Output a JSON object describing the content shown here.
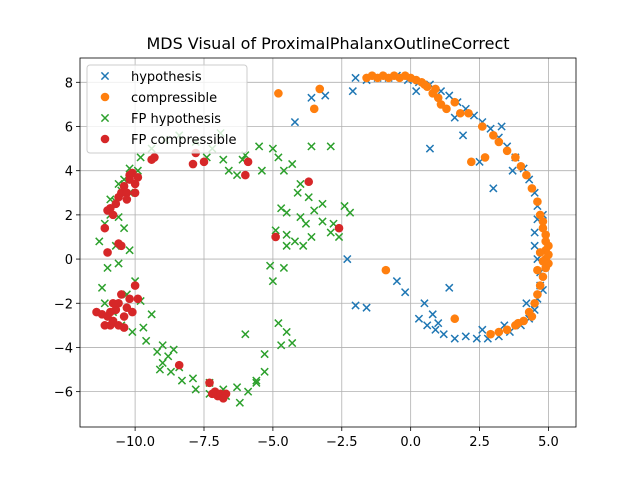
{
  "chart_data": {
    "type": "scatter",
    "title": "MDS Visual of ProximalPhalanxOutlineCorrect",
    "xlabel": "",
    "ylabel": "",
    "xlim": [
      -12.0,
      6.0
    ],
    "ylim": [
      -7.6,
      9.1
    ],
    "xticks": [
      -10.0,
      -7.5,
      -5.0,
      -2.5,
      0.0,
      2.5,
      5.0
    ],
    "xtick_labels": [
      "−10.0",
      "−7.5",
      "−5.0",
      "−2.5",
      "0.0",
      "2.5",
      "5.0"
    ],
    "yticks": [
      -6,
      -4,
      -2,
      0,
      2,
      4,
      6,
      8
    ],
    "ytick_labels": [
      "−6",
      "−4",
      "−2",
      "0",
      "2",
      "4",
      "6",
      "8"
    ],
    "grid": true,
    "legend_position": "top-left",
    "series": [
      {
        "name": "hypothesis",
        "marker": "x",
        "color": "#1f77b4",
        "points": [
          [
            -2.0,
            8.2
          ],
          [
            -1.6,
            8.1
          ],
          [
            -1.2,
            8.2
          ],
          [
            -0.8,
            8.2
          ],
          [
            -0.5,
            8.3
          ],
          [
            -0.1,
            8.1
          ],
          [
            0.3,
            8.0
          ],
          [
            0.7,
            7.9
          ],
          [
            1.1,
            7.6
          ],
          [
            1.4,
            7.4
          ],
          [
            1.7,
            7.1
          ],
          [
            2.0,
            6.8
          ],
          [
            2.3,
            6.5
          ],
          [
            2.6,
            6.2
          ],
          [
            2.9,
            5.9
          ],
          [
            3.2,
            5.5
          ],
          [
            3.5,
            5.1
          ],
          [
            3.8,
            4.6
          ],
          [
            4.1,
            4.1
          ],
          [
            4.3,
            3.6
          ],
          [
            4.5,
            3.0
          ],
          [
            4.6,
            2.4
          ],
          [
            4.6,
            1.8
          ],
          [
            4.5,
            1.2
          ],
          [
            4.5,
            0.6
          ],
          [
            4.6,
            0.0
          ],
          [
            4.7,
            -0.6
          ],
          [
            4.7,
            -1.2
          ],
          [
            4.6,
            -1.8
          ],
          [
            4.5,
            -2.3
          ],
          [
            4.3,
            -2.7
          ],
          [
            4.0,
            -3.0
          ],
          [
            3.6,
            -3.3
          ],
          [
            3.2,
            -3.5
          ],
          [
            2.8,
            -3.6
          ],
          [
            2.4,
            -3.6
          ],
          [
            2.0,
            -3.5
          ],
          [
            1.6,
            -3.6
          ],
          [
            1.2,
            -3.4
          ],
          [
            0.9,
            -3.2
          ],
          [
            0.6,
            -3.0
          ],
          [
            0.3,
            -2.7
          ],
          [
            0.5,
            -2.0
          ],
          [
            0.8,
            -2.5
          ],
          [
            1.4,
            -1.3
          ],
          [
            -0.2,
            -1.5
          ],
          [
            -0.5,
            -1.0
          ],
          [
            -1.6,
            -2.2
          ],
          [
            -2.0,
            -2.1
          ],
          [
            -2.3,
            0.0
          ],
          [
            -2.1,
            7.6
          ],
          [
            -4.2,
            6.2
          ],
          [
            -3.6,
            7.3
          ],
          [
            -3.1,
            7.4
          ],
          [
            0.7,
            5.0
          ],
          [
            1.9,
            5.6
          ],
          [
            2.5,
            4.4
          ],
          [
            3.0,
            3.2
          ],
          [
            4.8,
            2.0
          ],
          [
            4.9,
            1.0
          ],
          [
            4.9,
            -0.3
          ],
          [
            4.8,
            -1.4
          ],
          [
            4.2,
            -2.0
          ],
          [
            3.4,
            -3.0
          ],
          [
            2.6,
            -3.2
          ],
          [
            1.0,
            -2.9
          ],
          [
            0.2,
            7.6
          ],
          [
            1.6,
            6.4
          ],
          [
            3.3,
            6.0
          ],
          [
            3.7,
            4.0
          ]
        ]
      },
      {
        "name": "compressible",
        "marker": "o",
        "color": "#ff7f0e",
        "points": [
          [
            -1.6,
            8.2
          ],
          [
            -1.4,
            8.3
          ],
          [
            -1.2,
            8.2
          ],
          [
            -1.0,
            8.3
          ],
          [
            -0.8,
            8.2
          ],
          [
            -0.6,
            8.3
          ],
          [
            -0.4,
            8.2
          ],
          [
            -0.2,
            8.3
          ],
          [
            0.0,
            8.2
          ],
          [
            0.2,
            8.1
          ],
          [
            0.4,
            8.0
          ],
          [
            0.6,
            7.8
          ],
          [
            0.8,
            7.5
          ],
          [
            1.0,
            7.3
          ],
          [
            1.1,
            7.0
          ],
          [
            1.3,
            6.8
          ],
          [
            1.6,
            7.1
          ],
          [
            2.1,
            6.6
          ],
          [
            2.6,
            6.0
          ],
          [
            3.0,
            5.6
          ],
          [
            3.2,
            5.3
          ],
          [
            3.5,
            4.9
          ],
          [
            3.8,
            4.6
          ],
          [
            4.0,
            4.2
          ],
          [
            4.2,
            3.8
          ],
          [
            4.4,
            3.2
          ],
          [
            4.6,
            2.6
          ],
          [
            4.7,
            2.0
          ],
          [
            4.8,
            1.4
          ],
          [
            4.9,
            0.8
          ],
          [
            4.9,
            0.4
          ],
          [
            4.9,
            0.0
          ],
          [
            4.9,
            -0.4
          ],
          [
            4.8,
            -0.8
          ],
          [
            4.7,
            -1.2
          ],
          [
            4.6,
            -1.6
          ],
          [
            4.5,
            -2.0
          ],
          [
            4.3,
            -2.4
          ],
          [
            4.1,
            -2.8
          ],
          [
            3.8,
            -3.0
          ],
          [
            3.5,
            -3.2
          ],
          [
            3.2,
            -3.3
          ],
          [
            2.9,
            -3.4
          ],
          [
            2.2,
            4.4
          ],
          [
            2.7,
            4.6
          ],
          [
            1.8,
            6.6
          ],
          [
            -4.8,
            7.5
          ],
          [
            -3.5,
            6.8
          ],
          [
            -3.3,
            7.7
          ],
          [
            -0.9,
            -0.5
          ],
          [
            1.6,
            -2.7
          ],
          [
            5.0,
            0.2
          ],
          [
            5.0,
            -0.2
          ],
          [
            5.0,
            0.6
          ],
          [
            4.8,
            -0.1
          ],
          [
            4.7,
            0.3
          ],
          [
            4.6,
            -0.5
          ],
          [
            4.9,
            1.1
          ],
          [
            4.8,
            1.7
          ],
          [
            4.4,
            -2.6
          ],
          [
            3.9,
            -2.9
          ],
          [
            0.9,
            7.7
          ],
          [
            0.5,
            7.9
          ]
        ]
      },
      {
        "name": "FP hypothesis",
        "marker": "x",
        "color": "#2ca02c",
        "points": [
          [
            -11.2,
            -1.3
          ],
          [
            -11.0,
            -0.4
          ],
          [
            -11.3,
            0.8
          ],
          [
            -11.1,
            1.6
          ],
          [
            -10.9,
            2.0
          ],
          [
            -10.7,
            2.6
          ],
          [
            -10.5,
            3.1
          ],
          [
            -10.4,
            3.6
          ],
          [
            -10.2,
            4.1
          ],
          [
            -9.8,
            4.6
          ],
          [
            -9.4,
            5.0
          ],
          [
            -8.9,
            5.4
          ],
          [
            -8.4,
            5.6
          ],
          [
            -7.8,
            5.3
          ],
          [
            -7.2,
            5.0
          ],
          [
            -6.8,
            4.5
          ],
          [
            -6.6,
            4.0
          ],
          [
            -6.3,
            3.8
          ],
          [
            -6.0,
            4.7
          ],
          [
            -5.5,
            5.1
          ],
          [
            -5.0,
            5.0
          ],
          [
            -4.8,
            4.6
          ],
          [
            -4.6,
            4.0
          ],
          [
            -4.3,
            4.3
          ],
          [
            -4.0,
            3.4
          ],
          [
            -3.7,
            2.8
          ],
          [
            -3.5,
            2.2
          ],
          [
            -3.2,
            1.7
          ],
          [
            -2.9,
            1.2
          ],
          [
            -2.6,
            1.0
          ],
          [
            -2.4,
            2.4
          ],
          [
            -2.2,
            2.1
          ],
          [
            -3.6,
            5.1
          ],
          [
            -2.9,
            5.1
          ],
          [
            -4.7,
            2.3
          ],
          [
            -4.5,
            2.1
          ],
          [
            -4.0,
            1.9
          ],
          [
            -3.8,
            1.6
          ],
          [
            -4.9,
            1.3
          ],
          [
            -4.5,
            0.6
          ],
          [
            -4.2,
            0.8
          ],
          [
            -4.6,
            -0.4
          ],
          [
            -5.1,
            -0.3
          ],
          [
            -5.0,
            -1.0
          ],
          [
            -4.8,
            -2.9
          ],
          [
            -4.5,
            -3.3
          ],
          [
            -4.3,
            -3.8
          ],
          [
            -4.7,
            -3.9
          ],
          [
            -5.3,
            -4.3
          ],
          [
            -5.3,
            -5.1
          ],
          [
            -5.6,
            -5.5
          ],
          [
            -5.9,
            -6.0
          ],
          [
            -6.2,
            -6.5
          ],
          [
            -6.7,
            -6.2
          ],
          [
            -7.3,
            -6.1
          ],
          [
            -7.8,
            -5.9
          ],
          [
            -8.3,
            -5.5
          ],
          [
            -8.7,
            -5.1
          ],
          [
            -9.0,
            -4.7
          ],
          [
            -9.2,
            -4.2
          ],
          [
            -9.6,
            -3.7
          ],
          [
            -10.1,
            -3.3
          ],
          [
            -10.5,
            -3.0
          ],
          [
            -10.8,
            -2.4
          ],
          [
            -11.1,
            -2.0
          ],
          [
            -10.3,
            -1.6
          ],
          [
            -10.0,
            -1.0
          ],
          [
            -10.6,
            -0.2
          ],
          [
            -10.2,
            0.4
          ],
          [
            -10.4,
            1.4
          ],
          [
            -10.7,
            0.6
          ],
          [
            -9.8,
            -1.9
          ],
          [
            -9.4,
            -2.5
          ],
          [
            -9.7,
            -3.1
          ],
          [
            -9.0,
            -3.9
          ],
          [
            -8.8,
            -4.4
          ],
          [
            -8.4,
            -4.9
          ],
          [
            -7.9,
            -5.4
          ],
          [
            -7.3,
            -5.6
          ],
          [
            -6.8,
            -5.9
          ],
          [
            -6.3,
            -5.8
          ],
          [
            -6.0,
            -3.4
          ],
          [
            -5.6,
            -5.6
          ],
          [
            -9.1,
            -5.0
          ],
          [
            -8.6,
            -4.1
          ],
          [
            -10.6,
            1.9
          ],
          [
            -10.9,
            2.7
          ],
          [
            -10.6,
            3.4
          ],
          [
            -10.2,
            3.0
          ],
          [
            -9.9,
            4.0
          ],
          [
            -7.4,
            4.6
          ],
          [
            -6.9,
            5.7
          ],
          [
            -4.1,
            3.0
          ],
          [
            -3.2,
            2.5
          ],
          [
            -3.6,
            1.0
          ],
          [
            -3.9,
            0.6
          ],
          [
            -4.5,
            1.1
          ],
          [
            -2.8,
            1.6
          ],
          [
            -5.4,
            4.0
          ],
          [
            -6.1,
            4.5
          ]
        ]
      },
      {
        "name": "FP compressible",
        "marker": "o",
        "color": "#d62728",
        "points": [
          [
            -11.4,
            -2.4
          ],
          [
            -11.2,
            -2.5
          ],
          [
            -11.1,
            -3.0
          ],
          [
            -10.9,
            -3.0
          ],
          [
            -10.8,
            -2.8
          ],
          [
            -10.7,
            -2.3
          ],
          [
            -10.6,
            -2.0
          ],
          [
            -10.5,
            -1.6
          ],
          [
            -10.4,
            -2.6
          ],
          [
            -10.4,
            -3.1
          ],
          [
            -10.3,
            -2.2
          ],
          [
            -10.2,
            -1.8
          ],
          [
            -10.1,
            -2.4
          ],
          [
            -10.0,
            -1.2
          ],
          [
            -9.9,
            -1.8
          ],
          [
            -10.6,
            0.7
          ],
          [
            -10.5,
            0.6
          ],
          [
            -11.0,
            0.3
          ],
          [
            -11.1,
            1.4
          ],
          [
            -11.0,
            2.2
          ],
          [
            -10.9,
            2.3
          ],
          [
            -10.8,
            2.0
          ],
          [
            -10.7,
            2.5
          ],
          [
            -10.6,
            2.8
          ],
          [
            -10.5,
            3.0
          ],
          [
            -10.4,
            3.3
          ],
          [
            -10.3,
            3.0
          ],
          [
            -10.2,
            3.6
          ],
          [
            -10.2,
            3.8
          ],
          [
            -10.1,
            3.9
          ],
          [
            -10.0,
            3.4
          ],
          [
            -10.0,
            3.0
          ],
          [
            -9.9,
            3.7
          ],
          [
            -10.3,
            2.7
          ],
          [
            -9.4,
            4.5
          ],
          [
            -9.3,
            4.6
          ],
          [
            -7.9,
            4.3
          ],
          [
            -7.8,
            4.8
          ],
          [
            -7.5,
            4.4
          ],
          [
            -6.0,
            3.8
          ],
          [
            -5.9,
            4.4
          ],
          [
            -3.7,
            3.5
          ],
          [
            -4.9,
            1.0
          ],
          [
            -2.6,
            1.4
          ],
          [
            -8.4,
            -4.8
          ],
          [
            -7.3,
            -5.6
          ],
          [
            -7.1,
            -6.0
          ],
          [
            -7.0,
            -6.2
          ],
          [
            -6.9,
            -6.1
          ],
          [
            -6.8,
            -6.2
          ],
          [
            -6.7,
            -6.1
          ],
          [
            -6.8,
            -6.3
          ],
          [
            -7.2,
            -6.1
          ],
          [
            -10.6,
            -3.0
          ],
          [
            -10.8,
            -2.0
          ],
          [
            -11.0,
            -2.6
          ],
          [
            -10.9,
            -2.4
          ]
        ]
      }
    ]
  }
}
